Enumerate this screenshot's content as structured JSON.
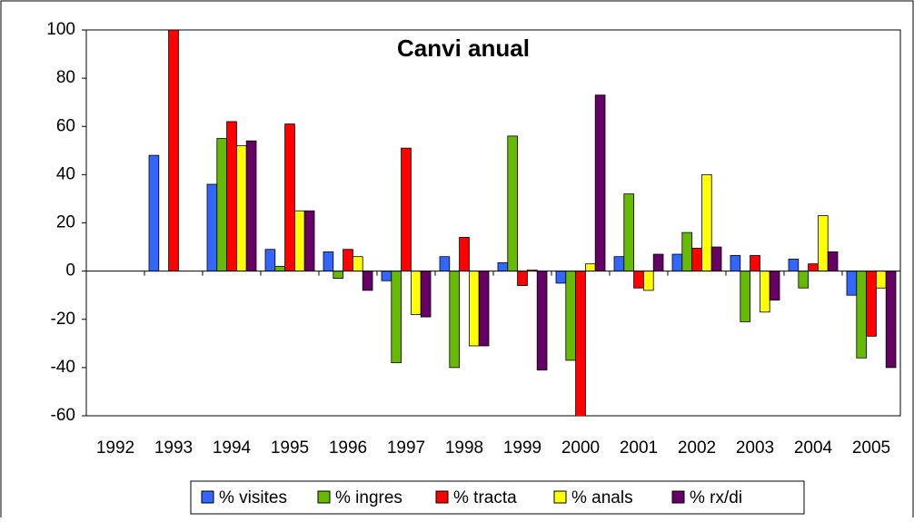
{
  "chart_data": {
    "type": "bar",
    "title": "Canvi anual",
    "categories": [
      "1992",
      "1993",
      "1994",
      "1995",
      "1996",
      "1997",
      "1998",
      "1999",
      "2000",
      "2001",
      "2002",
      "2003",
      "2004",
      "2005"
    ],
    "series": [
      {
        "name": "% visites",
        "color": "#3366ff",
        "values": [
          null,
          48,
          36,
          9,
          8,
          -4,
          6,
          3.5,
          -5,
          6,
          7,
          6.5,
          5,
          -10
        ]
      },
      {
        "name": "% ingres",
        "color": "#66bb00",
        "values": [
          null,
          null,
          55,
          2,
          -3,
          -38,
          -40,
          56,
          -37,
          32,
          16,
          -21,
          -7,
          -36
        ]
      },
      {
        "name": "% tracta",
        "color": "#ff0000",
        "values": [
          null,
          100,
          62,
          61,
          9,
          51,
          14,
          -6,
          -62,
          -7,
          9.5,
          6.5,
          3,
          -27
        ]
      },
      {
        "name": "% anals",
        "color": "#ffff00",
        "values": [
          null,
          null,
          52,
          25,
          6,
          -18,
          -31,
          0.5,
          3,
          -8,
          40,
          -17,
          23,
          -7
        ]
      },
      {
        "name": "% rx/di",
        "color": "#660066",
        "values": [
          null,
          null,
          54,
          25,
          -8,
          -19,
          -31,
          -41,
          73,
          7,
          10,
          -12,
          8,
          -40
        ]
      }
    ],
    "ylim": [
      -60,
      100
    ],
    "yticks": [
      -60,
      -40,
      -20,
      0,
      20,
      40,
      60,
      80,
      100
    ],
    "legend": "bottom"
  }
}
